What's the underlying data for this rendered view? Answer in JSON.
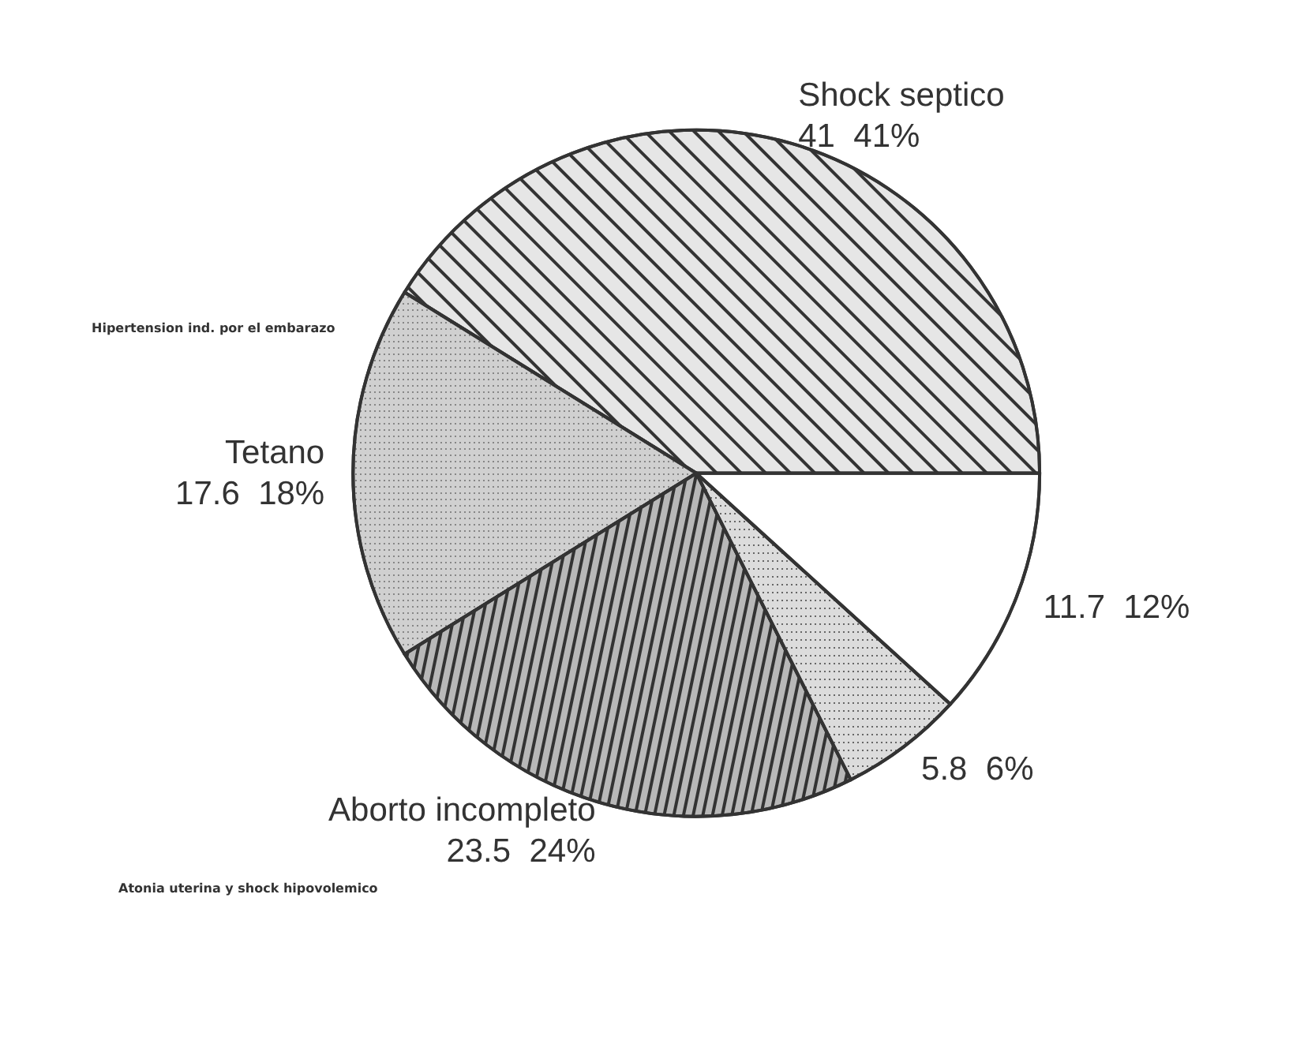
{
  "chart_data": {
    "type": "pie",
    "categories": [
      "Shock septico",
      "Tetano",
      "Aborto incompleto",
      null,
      null
    ],
    "values": [
      41,
      17.6,
      23.5,
      5.8,
      11.7
    ],
    "value_labels": [
      "41  41%",
      "17.6  18%",
      "23.5  24%",
      "5.8  6%",
      "11.7  12%"
    ],
    "colors": [
      "#e6e6e6",
      "#d0d0d0",
      "#b8b8b8",
      "#dcdcdc",
      "#ffffff"
    ],
    "annotations": [
      "Hipertension ind. por el embarazo",
      "Atonia uterina y shock hipovolemico"
    ]
  }
}
